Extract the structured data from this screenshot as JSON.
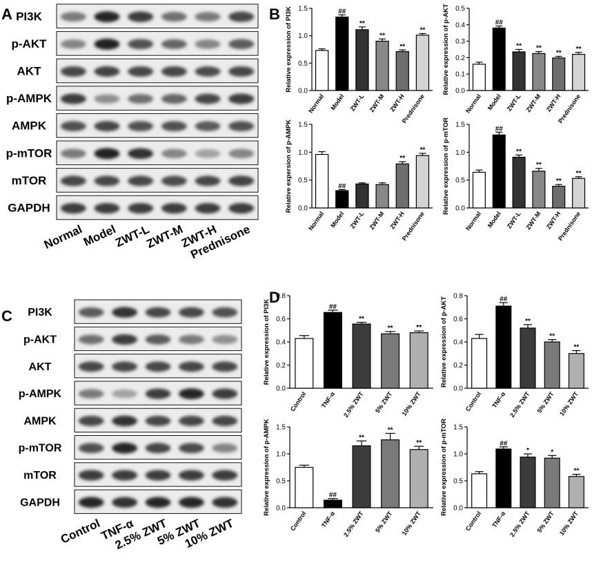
{
  "panels": [
    {
      "letter": "A"
    },
    {
      "letter": "B"
    },
    {
      "letter": "C"
    },
    {
      "letter": "D"
    }
  ],
  "blot_a": {
    "rows": [
      {
        "label": "PI3K",
        "bands": [
          0.55,
          0.95,
          0.85,
          0.6,
          0.55,
          0.8
        ]
      },
      {
        "label": "p-AKT",
        "bands": [
          0.5,
          0.98,
          0.75,
          0.65,
          0.5,
          0.7
        ]
      },
      {
        "label": "AKT",
        "bands": [
          0.8,
          0.82,
          0.8,
          0.8,
          0.78,
          0.8
        ]
      },
      {
        "label": "p-AMPK",
        "bands": [
          0.85,
          0.45,
          0.6,
          0.65,
          0.8,
          0.85
        ]
      },
      {
        "label": "AMPK",
        "bands": [
          0.75,
          0.8,
          0.75,
          0.75,
          0.7,
          0.75
        ]
      },
      {
        "label": "p-mTOR",
        "bands": [
          0.55,
          0.98,
          0.9,
          0.5,
          0.35,
          0.5
        ]
      },
      {
        "label": "mTOR",
        "bands": [
          0.8,
          0.8,
          0.8,
          0.78,
          0.8,
          0.82
        ]
      },
      {
        "label": "GAPDH",
        "bands": [
          0.85,
          0.85,
          0.85,
          0.85,
          0.85,
          0.85
        ]
      }
    ],
    "lanes": [
      "Normal",
      "Model",
      "ZWT-L",
      "ZWT-M",
      "ZWT-H",
      "Prednisone"
    ]
  },
  "blot_c": {
    "rows": [
      {
        "label": "PI3K",
        "bands": [
          0.7,
          0.9,
          0.8,
          0.8,
          0.75
        ]
      },
      {
        "label": "p-AKT",
        "bands": [
          0.6,
          0.85,
          0.7,
          0.55,
          0.45
        ]
      },
      {
        "label": "AKT",
        "bands": [
          0.8,
          0.8,
          0.8,
          0.8,
          0.8
        ]
      },
      {
        "label": "p-AMPK",
        "bands": [
          0.55,
          0.35,
          0.85,
          0.95,
          0.85
        ]
      },
      {
        "label": "AMPK",
        "bands": [
          0.8,
          0.9,
          0.8,
          0.8,
          0.8
        ]
      },
      {
        "label": "p-mTOR",
        "bands": [
          0.75,
          0.95,
          0.8,
          0.78,
          0.5
        ]
      },
      {
        "label": "mTOR",
        "bands": [
          0.85,
          0.85,
          0.85,
          0.85,
          0.85
        ]
      },
      {
        "label": "GAPDH",
        "bands": [
          0.95,
          0.9,
          0.95,
          0.95,
          0.9
        ]
      }
    ],
    "lanes": [
      "Control",
      "TNF-α",
      "2.5% ZWT",
      "5% ZWT",
      "10% ZWT"
    ]
  },
  "styles": {
    "fills_b": [
      "#ffffff",
      "#000000",
      "#333333",
      "#888888",
      "#6e6e6e",
      "#d4d4d4"
    ],
    "fills_d": [
      "#ffffff",
      "#000000",
      "#3c3c3c",
      "#7a7a7a",
      "#b0b0b0"
    ]
  },
  "chart_data": [
    {
      "type": "bar",
      "ylabel": "Relative expression of PI3K",
      "categories": [
        "Normal",
        "Model",
        "ZWT-L",
        "ZWT-M",
        "ZWT-H",
        "Prednisone"
      ],
      "values": [
        0.73,
        1.34,
        1.11,
        0.9,
        0.71,
        1.01
      ],
      "errors": [
        0.03,
        0.04,
        0.05,
        0.04,
        0.03,
        0.03
      ],
      "annotations": [
        "",
        "##",
        "**",
        "**",
        "**",
        "**"
      ],
      "ylim": [
        0,
        1.5
      ],
      "yticks": [
        "0.0",
        "0.5",
        "1.0",
        "1.5"
      ]
    },
    {
      "type": "bar",
      "ylabel": "Relative expression of p-AKT",
      "categories": [
        "Normal",
        "Model",
        "ZWT-L",
        "ZWT-M",
        "ZWT-H",
        "Prednisone"
      ],
      "values": [
        0.16,
        0.38,
        0.235,
        0.225,
        0.198,
        0.22
      ],
      "errors": [
        0.012,
        0.012,
        0.015,
        0.012,
        0.01,
        0.012
      ],
      "annotations": [
        "",
        "##",
        "**",
        "**",
        "**",
        "**"
      ],
      "ylim": [
        0,
        0.5
      ],
      "yticks": [
        "0.0",
        "0.1",
        "0.2",
        "0.3",
        "0.4",
        "0.5"
      ]
    },
    {
      "type": "bar",
      "ylabel": "Relative expersion of p-AMPK",
      "categories": [
        "Normal",
        "Model",
        "ZWT-L",
        "ZWT-M",
        "ZWT-H",
        "Prednisone"
      ],
      "values": [
        0.96,
        0.31,
        0.43,
        0.42,
        0.79,
        0.94
      ],
      "errors": [
        0.05,
        0.02,
        0.02,
        0.03,
        0.04,
        0.04
      ],
      "annotations": [
        "",
        "##",
        "",
        "",
        "**",
        "**"
      ],
      "ylim": [
        0,
        1.5
      ],
      "yticks": [
        "0.0",
        "0.5",
        "1.0",
        "1.5"
      ]
    },
    {
      "type": "bar",
      "ylabel": "Relative expression of p-mTOR",
      "categories": [
        "Normal",
        "Model",
        "ZWT-L",
        "ZWT-M",
        "ZWT-H",
        "Prednisone"
      ],
      "values": [
        0.64,
        1.31,
        0.91,
        0.66,
        0.39,
        0.53
      ],
      "errors": [
        0.04,
        0.05,
        0.04,
        0.05,
        0.03,
        0.03
      ],
      "annotations": [
        "",
        "##",
        "**",
        "**",
        "**",
        "**"
      ],
      "ylim": [
        0,
        1.5
      ],
      "yticks": [
        "0.0",
        "0.5",
        "1.0",
        "1.5"
      ]
    },
    {
      "type": "bar",
      "ylabel": "Relative expression of PI3K",
      "categories": [
        "Control",
        "TNF-α",
        "2.5% ZWT",
        "5% ZWT",
        "10% ZWT"
      ],
      "values": [
        0.43,
        0.655,
        0.555,
        0.47,
        0.48
      ],
      "errors": [
        0.025,
        0.02,
        0.015,
        0.02,
        0.015
      ],
      "annotations": [
        "",
        "##",
        "**",
        "**",
        "**"
      ],
      "ylim": [
        0,
        0.8
      ],
      "yticks": [
        "0.0",
        "0.2",
        "0.4",
        "0.6",
        "0.8"
      ]
    },
    {
      "type": "bar",
      "ylabel": "Relative expression of p-AKT",
      "categories": [
        "Control",
        "TNF-α",
        "2.5% ZWT",
        "5% ZWT",
        "10% ZWT"
      ],
      "values": [
        0.43,
        0.71,
        0.52,
        0.4,
        0.3
      ],
      "errors": [
        0.035,
        0.03,
        0.03,
        0.02,
        0.025
      ],
      "annotations": [
        "",
        "##",
        "**",
        "**",
        "**"
      ],
      "ylim": [
        0,
        0.8
      ],
      "yticks": [
        "0.0",
        "0.2",
        "0.4",
        "0.6",
        "0.8"
      ]
    },
    {
      "type": "bar",
      "ylabel": "Relative expression of p-AMPK",
      "categories": [
        "Control",
        "TNF-α",
        "2.5% ZWT",
        "5% ZWT",
        "10% ZWT"
      ],
      "values": [
        0.75,
        0.14,
        1.15,
        1.26,
        1.08
      ],
      "errors": [
        0.04,
        0.03,
        0.09,
        0.12,
        0.06
      ],
      "annotations": [
        "",
        "##",
        "**",
        "**",
        "**"
      ],
      "ylim": [
        0,
        1.5
      ],
      "yticks": [
        "0.0",
        "0.5",
        "1.0",
        "1.5"
      ]
    },
    {
      "type": "bar",
      "ylabel": "Relative expression of p-mTOR",
      "categories": [
        "Control",
        "TNF-α",
        "2.5% ZWT",
        "5% ZWT",
        "10% ZWT"
      ],
      "values": [
        0.63,
        1.09,
        0.94,
        0.92,
        0.58
      ],
      "errors": [
        0.04,
        0.04,
        0.06,
        0.05,
        0.04
      ],
      "annotations": [
        "",
        "##",
        "*",
        "*",
        "**"
      ],
      "ylim": [
        0,
        1.5
      ],
      "yticks": [
        "0.0",
        "0.5",
        "1.0",
        "1.5"
      ]
    }
  ]
}
